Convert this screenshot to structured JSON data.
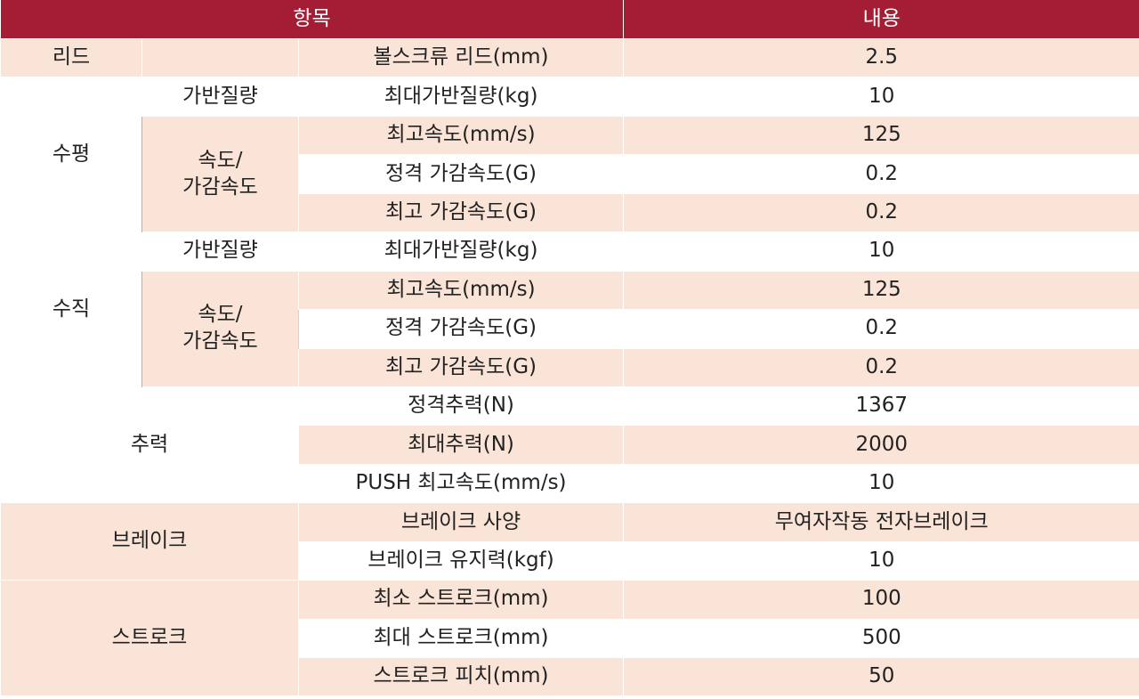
{
  "header": {
    "item": "항목",
    "content": "내용"
  },
  "lead": {
    "category": "리드",
    "label": "볼스크류 리드(mm)",
    "value": "2.5"
  },
  "horizontal": {
    "category": "수평",
    "payload_group": "가반질량",
    "speed_group_line1": "속도/",
    "speed_group_line2": "가감속도",
    "rows": [
      {
        "label": "최대가반질량(kg)",
        "value": "10"
      },
      {
        "label": "최고속도(mm/s)",
        "value": "125"
      },
      {
        "label": "정격 가감속도(G)",
        "value": "0.2"
      },
      {
        "label": "최고 가감속도(G)",
        "value": "0.2"
      }
    ]
  },
  "vertical": {
    "category": "수직",
    "payload_group": "가반질량",
    "speed_group_line1": "속도/",
    "speed_group_line2": "가감속도",
    "rows": [
      {
        "label": "최대가반질량(kg)",
        "value": "10"
      },
      {
        "label": "최고속도(mm/s)",
        "value": "125"
      },
      {
        "label": "정격 가감속도(G)",
        "value": "0.2"
      },
      {
        "label": "최고 가감속도(G)",
        "value": "0.2"
      }
    ]
  },
  "thrust": {
    "category": "추력",
    "rows": [
      {
        "label": "정격추력(N)",
        "value": "1367"
      },
      {
        "label": "최대추력(N)",
        "value": "2000"
      },
      {
        "label": "PUSH 최고속도(mm/s)",
        "value": "10"
      }
    ]
  },
  "brake": {
    "category": "브레이크",
    "rows": [
      {
        "label": "브레이크 사양",
        "value": "무여자작동 전자브레이크"
      },
      {
        "label": "브레이크 유지력(kgf)",
        "value": "10"
      }
    ]
  },
  "stroke": {
    "category": "스트로크",
    "rows": [
      {
        "label": "최소 스트로크(mm)",
        "value": "100"
      },
      {
        "label": "최대 스트로크(mm)",
        "value": "500"
      },
      {
        "label": "스트로크 피치(mm)",
        "value": "50"
      }
    ]
  },
  "colors": {
    "header_bg": "#a51d35",
    "header_text": "#ffffff",
    "row_tint": "#fae3d7",
    "row_plain": "#ffffff",
    "accent_line": "#e8a17e"
  }
}
